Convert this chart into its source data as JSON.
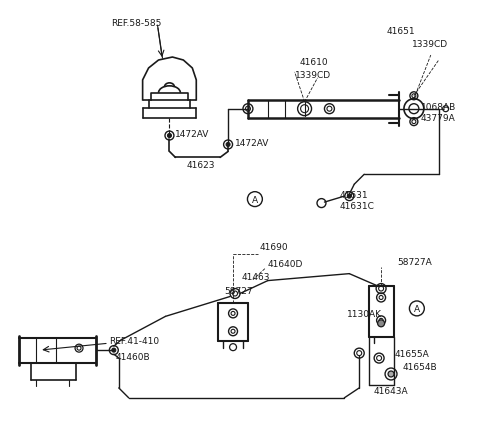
{
  "bg_color": "#ffffff",
  "line_color": "#1a1a1a",
  "figsize": [
    4.8,
    4.35
  ],
  "dpi": 100,
  "xlim": [
    0,
    480
  ],
  "ylim": [
    0,
    435
  ]
}
